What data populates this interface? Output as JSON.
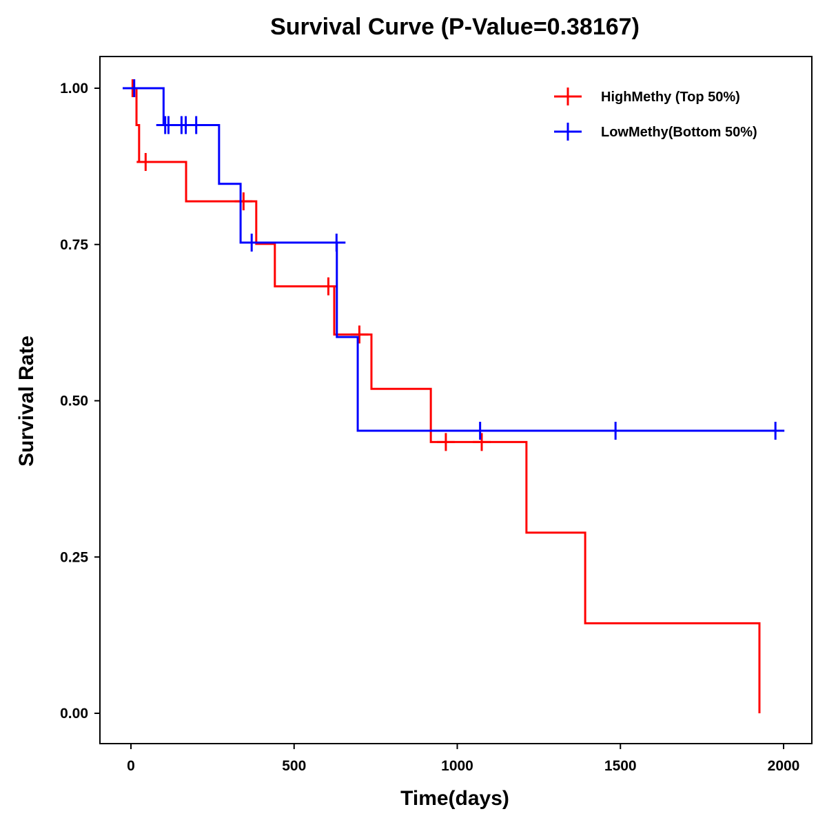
{
  "chart_data": {
    "type": "line",
    "subtype": "kaplan-meier-step",
    "title": "Survival Curve (P-Value=0.38167)",
    "xlabel": "Time(days)",
    "ylabel": "Survival Rate",
    "xlim": [
      -80,
      2080
    ],
    "ylim": [
      -0.05,
      1.05
    ],
    "x_ticks": [
      0,
      500,
      1000,
      1500,
      2000
    ],
    "x_tick_labels": [
      "0",
      "500",
      "1000",
      "1500",
      "2000"
    ],
    "y_ticks": [
      0,
      0.25,
      0.5,
      0.75,
      1.0
    ],
    "y_tick_labels": [
      "0.00",
      "0.25",
      "0.50",
      "0.75",
      "1.00"
    ],
    "grid": false,
    "legend_position": "top-right",
    "series": [
      {
        "name": "HighMethy (Top 50%)",
        "color": "#ff0000",
        "steps": [
          {
            "t": 0,
            "s": 1.0
          },
          {
            "t": 17,
            "s": 0.941
          },
          {
            "t": 25,
            "s": 0.882
          },
          {
            "t": 169,
            "s": 0.819
          },
          {
            "t": 384,
            "s": 0.751
          },
          {
            "t": 441,
            "s": 0.683
          },
          {
            "t": 623,
            "s": 0.606
          },
          {
            "t": 737,
            "s": 0.519
          },
          {
            "t": 919,
            "s": 0.434
          },
          {
            "t": 1212,
            "s": 0.289
          },
          {
            "t": 1392,
            "s": 0.144
          },
          {
            "t": 1926,
            "s": 0.0
          }
        ],
        "end_t": 1926,
        "censored": [
          {
            "t": 5,
            "s": 1.0
          },
          {
            "t": 45,
            "s": 0.882
          },
          {
            "t": 345,
            "s": 0.819
          },
          {
            "t": 605,
            "s": 0.683
          },
          {
            "t": 700,
            "s": 0.606
          },
          {
            "t": 965,
            "s": 0.434
          },
          {
            "t": 1075,
            "s": 0.434
          }
        ]
      },
      {
        "name": "LowMethy(Bottom 50%)",
        "color": "#0000ff",
        "steps": [
          {
            "t": 0,
            "s": 1.0
          },
          {
            "t": 100,
            "s": 0.941
          },
          {
            "t": 270,
            "s": 0.847
          },
          {
            "t": 336,
            "s": 0.753
          },
          {
            "t": 631,
            "s": 0.602
          },
          {
            "t": 695,
            "s": 0.452
          }
        ],
        "end_t": 1990,
        "censored": [
          {
            "t": 10,
            "s": 1.0
          },
          {
            "t": 105,
            "s": 0.941
          },
          {
            "t": 115,
            "s": 0.941
          },
          {
            "t": 155,
            "s": 0.941
          },
          {
            "t": 168,
            "s": 0.941
          },
          {
            "t": 200,
            "s": 0.941
          },
          {
            "t": 370,
            "s": 0.753
          },
          {
            "t": 630,
            "s": 0.753
          },
          {
            "t": 1070,
            "s": 0.452
          },
          {
            "t": 1485,
            "s": 0.452
          },
          {
            "t": 1975,
            "s": 0.452
          }
        ]
      }
    ]
  }
}
